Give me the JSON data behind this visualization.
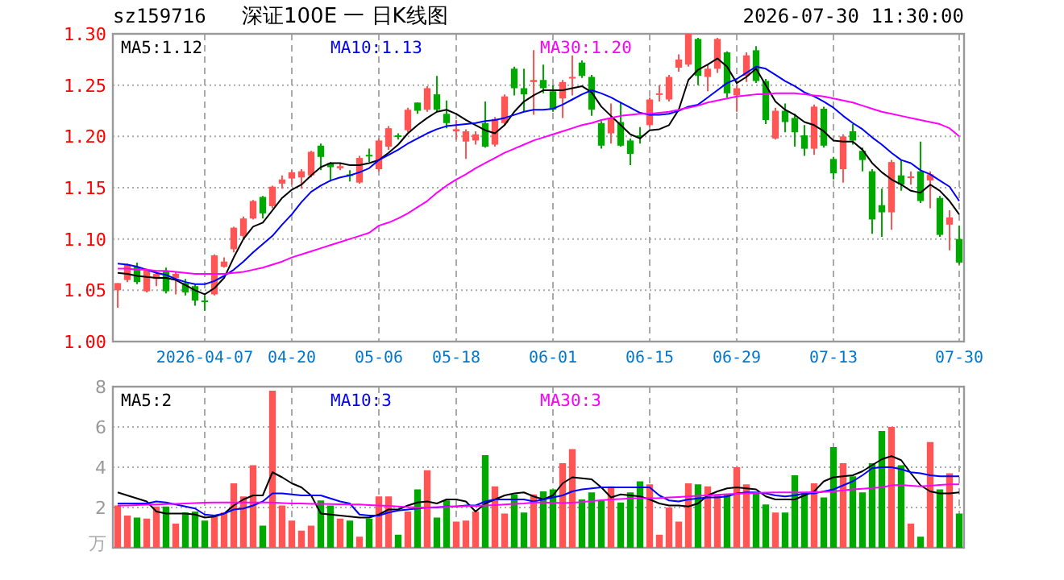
{
  "chart_data": [
    {
      "type": "candlestick",
      "title": "深证100E 一 日K线图",
      "subtitle": "sz159716",
      "annotations": [
        "2026-07-30 11:30:00"
      ],
      "categories": [
        null,
        null,
        null,
        null,
        null,
        null,
        null,
        null,
        null,
        "2026-04-07",
        null,
        null,
        null,
        null,
        null,
        null,
        null,
        null,
        "04-20",
        null,
        null,
        null,
        null,
        null,
        null,
        null,
        null,
        "05-06",
        null,
        null,
        null,
        null,
        null,
        null,
        null,
        "05-18",
        null,
        null,
        null,
        null,
        null,
        null,
        null,
        null,
        null,
        "06-01",
        null,
        null,
        null,
        null,
        null,
        null,
        null,
        null,
        null,
        "06-15",
        null,
        null,
        null,
        null,
        null,
        null,
        null,
        null,
        "06-29",
        null,
        null,
        null,
        null,
        null,
        null,
        null,
        null,
        null,
        "07-13",
        null,
        null,
        null,
        null,
        null,
        null,
        null,
        null,
        null,
        null,
        null,
        null,
        "07-30"
      ],
      "ohlc": [
        [
          1.05,
          1.057,
          1.033,
          1.057
        ],
        [
          1.06,
          1.076,
          1.058,
          1.075
        ],
        [
          1.073,
          1.077,
          1.056,
          1.058
        ],
        [
          1.049,
          1.071,
          1.048,
          1.07
        ],
        [
          1.061,
          1.069,
          1.054,
          1.066
        ],
        [
          1.069,
          1.072,
          1.047,
          1.049
        ],
        [
          1.062,
          1.068,
          1.046,
          1.066
        ],
        [
          1.057,
          1.061,
          1.045,
          1.048
        ],
        [
          1.054,
          1.056,
          1.035,
          1.04
        ],
        [
          1.04,
          1.045,
          1.03,
          1.039
        ],
        [
          1.046,
          1.085,
          1.045,
          1.084
        ],
        [
          1.073,
          1.082,
          1.072,
          1.078
        ],
        [
          1.09,
          1.112,
          1.087,
          1.111
        ],
        [
          1.103,
          1.122,
          1.1,
          1.12
        ],
        [
          1.12,
          1.138,
          1.119,
          1.137
        ],
        [
          1.141,
          1.142,
          1.12,
          1.125
        ],
        [
          1.132,
          1.152,
          1.13,
          1.151
        ],
        [
          1.154,
          1.162,
          1.149,
          1.158
        ],
        [
          1.159,
          1.167,
          1.153,
          1.165
        ],
        [
          1.16,
          1.168,
          1.149,
          1.166
        ],
        [
          1.162,
          1.186,
          1.16,
          1.185
        ],
        [
          1.191,
          1.193,
          1.167,
          1.18
        ],
        [
          1.174,
          1.175,
          1.156,
          1.17
        ],
        [
          1.169,
          1.174,
          1.167,
          1.171
        ],
        [
          1.163,
          1.167,
          1.156,
          1.162
        ],
        [
          1.155,
          1.181,
          1.154,
          1.179
        ],
        [
          1.182,
          1.188,
          1.175,
          1.181
        ],
        [
          1.168,
          1.198,
          1.166,
          1.196
        ],
        [
          1.19,
          1.21,
          1.187,
          1.208
        ],
        [
          1.201,
          1.203,
          1.197,
          1.2
        ],
        [
          1.206,
          1.228,
          1.204,
          1.226
        ],
        [
          1.233,
          1.233,
          1.222,
          1.225
        ],
        [
          1.226,
          1.249,
          1.224,
          1.247
        ],
        [
          1.241,
          1.259,
          1.224,
          1.226
        ],
        [
          1.222,
          1.235,
          1.208,
          1.213
        ],
        [
          1.205,
          1.216,
          1.197,
          1.207
        ],
        [
          1.195,
          1.207,
          1.178,
          1.205
        ],
        [
          1.196,
          1.205,
          1.192,
          1.202
        ],
        [
          1.213,
          1.234,
          1.189,
          1.19
        ],
        [
          1.192,
          1.219,
          1.19,
          1.217
        ],
        [
          1.213,
          1.241,
          1.211,
          1.239
        ],
        [
          1.266,
          1.268,
          1.24,
          1.247
        ],
        [
          1.247,
          1.266,
          1.224,
          1.241
        ],
        [
          1.253,
          1.284,
          1.221,
          1.255
        ],
        [
          1.255,
          1.27,
          1.242,
          1.247
        ],
        [
          1.244,
          1.25,
          1.224,
          1.226
        ],
        [
          1.237,
          1.255,
          1.218,
          1.253
        ],
        [
          1.257,
          1.279,
          1.24,
          1.258
        ],
        [
          1.272,
          1.274,
          1.257,
          1.259
        ],
        [
          1.258,
          1.26,
          1.22,
          1.226
        ],
        [
          1.213,
          1.215,
          1.188,
          1.191
        ],
        [
          1.203,
          1.232,
          1.193,
          1.218
        ],
        [
          1.214,
          1.233,
          1.19,
          1.191
        ],
        [
          1.196,
          1.198,
          1.172,
          1.183
        ],
        [
          1.201,
          1.209,
          1.193,
          1.2
        ],
        [
          1.211,
          1.238,
          1.209,
          1.236
        ],
        [
          1.241,
          1.25,
          1.234,
          1.242
        ],
        [
          1.236,
          1.26,
          1.234,
          1.258
        ],
        [
          1.267,
          1.28,
          1.263,
          1.275
        ],
        [
          1.27,
          1.3,
          1.268,
          1.3
        ],
        [
          1.295,
          1.296,
          1.25,
          1.259
        ],
        [
          1.258,
          1.27,
          1.244,
          1.266
        ],
        [
          1.266,
          1.296,
          1.262,
          1.295
        ],
        [
          1.282,
          1.283,
          1.238,
          1.242
        ],
        [
          1.24,
          1.25,
          1.224,
          1.247
        ],
        [
          1.259,
          1.282,
          1.253,
          1.279
        ],
        [
          1.284,
          1.288,
          1.252,
          1.254
        ],
        [
          1.254,
          1.256,
          1.212,
          1.216
        ],
        [
          1.198,
          1.228,
          1.197,
          1.225
        ],
        [
          1.225,
          1.232,
          1.204,
          1.214
        ],
        [
          1.218,
          1.222,
          1.19,
          1.204
        ],
        [
          1.201,
          1.211,
          1.181,
          1.188
        ],
        [
          1.188,
          1.231,
          1.182,
          1.229
        ],
        [
          1.227,
          1.229,
          1.189,
          1.191
        ],
        [
          1.178,
          1.18,
          1.158,
          1.164
        ],
        [
          1.168,
          1.202,
          1.155,
          1.2
        ],
        [
          1.205,
          1.212,
          1.192,
          1.196
        ],
        [
          1.186,
          1.189,
          1.166,
          1.177
        ],
        [
          1.166,
          1.168,
          1.105,
          1.119
        ],
        [
          1.133,
          1.149,
          1.102,
          1.126
        ],
        [
          1.126,
          1.177,
          1.109,
          1.175
        ],
        [
          1.162,
          1.177,
          1.147,
          1.153
        ],
        [
          1.16,
          1.166,
          1.153,
          1.161
        ],
        [
          1.166,
          1.195,
          1.135,
          1.137
        ],
        [
          1.157,
          1.166,
          1.13,
          1.163
        ],
        [
          1.14,
          1.142,
          1.102,
          1.104
        ],
        [
          1.114,
          1.128,
          1.089,
          1.121
        ],
        [
          1.1,
          1.113,
          1.075,
          1.077
        ]
      ],
      "colors": [
        "#ff5555",
        "#ff5555",
        "#00a800",
        "#ff5555",
        "#ff5555",
        "#00a800",
        "#ff5555",
        "#00a800",
        "#00a800",
        "#00a800",
        "#ff5555",
        "#ff5555",
        "#ff5555",
        "#ff5555",
        "#ff5555",
        "#00a800",
        "#ff5555",
        "#ff5555",
        "#ff5555",
        "#ff5555",
        "#ff5555",
        "#00a800",
        "#00a800",
        "#ff5555",
        "#00a800",
        "#ff5555",
        "#00a800",
        "#ff5555",
        "#ff5555",
        "#00a800",
        "#ff5555",
        "#00a800",
        "#ff5555",
        "#00a800",
        "#00a800",
        "#ff5555",
        "#ff5555",
        "#ff5555",
        "#00a800",
        "#ff5555",
        "#ff5555",
        "#00a800",
        "#00a800",
        "#ff5555",
        "#00a800",
        "#00a800",
        "#ff5555",
        "#ff5555",
        "#00a800",
        "#00a800",
        "#00a800",
        "#ff5555",
        "#00a800",
        "#00a800",
        "#00a800",
        "#ff5555",
        "#ff5555",
        "#ff5555",
        "#ff5555",
        "#ff5555",
        "#00a800",
        "#ff5555",
        "#ff5555",
        "#00a800",
        "#ff5555",
        "#ff5555",
        "#00a800",
        "#00a800",
        "#ff5555",
        "#00a800",
        "#00a800",
        "#00a800",
        "#ff5555",
        "#00a800",
        "#00a800",
        "#ff5555",
        "#00a800",
        "#00a800",
        "#00a800",
        "#00a800",
        "#ff5555",
        "#00a800",
        "#ff5555",
        "#00a800",
        "#ff5555",
        "#00a800",
        "#ff5555",
        "#00a800"
      ],
      "series": [
        {
          "name": "MA5:1.12",
          "type": "line",
          "color": "#000000",
          "values": [
            1.067,
            1.066,
            1.064,
            1.063,
            1.062,
            1.062,
            1.06,
            1.055,
            1.05,
            1.046,
            1.052,
            1.062,
            1.082,
            1.1,
            1.112,
            1.116,
            1.128,
            1.14,
            1.148,
            1.153,
            1.162,
            1.17,
            1.174,
            1.174,
            1.172,
            1.172,
            1.174,
            1.177,
            1.184,
            1.192,
            1.203,
            1.211,
            1.218,
            1.224,
            1.226,
            1.222,
            1.216,
            1.211,
            1.206,
            1.203,
            1.211,
            1.224,
            1.234,
            1.24,
            1.245,
            1.245,
            1.245,
            1.247,
            1.249,
            1.243,
            1.229,
            1.22,
            1.211,
            1.202,
            1.198,
            1.206,
            1.207,
            1.211,
            1.226,
            1.255,
            1.265,
            1.27,
            1.276,
            1.268,
            1.252,
            1.258,
            1.266,
            1.25,
            1.234,
            1.226,
            1.221,
            1.214,
            1.211,
            1.205,
            1.196,
            1.195,
            1.195,
            1.187,
            1.174,
            1.165,
            1.158,
            1.153,
            1.147,
            1.145,
            1.153,
            1.147,
            1.137,
            1.124
          ]
        },
        {
          "name": "MA10:1.13",
          "type": "line",
          "color": "#0000ff",
          "values": [
            1.076,
            1.075,
            1.073,
            1.07,
            1.067,
            1.065,
            1.061,
            1.058,
            1.056,
            1.056,
            1.059,
            1.064,
            1.07,
            1.078,
            1.087,
            1.095,
            1.103,
            1.114,
            1.124,
            1.136,
            1.146,
            1.152,
            1.157,
            1.16,
            1.162,
            1.165,
            1.169,
            1.177,
            1.182,
            1.187,
            1.193,
            1.198,
            1.203,
            1.207,
            1.21,
            1.211,
            1.212,
            1.213,
            1.215,
            1.216,
            1.218,
            1.221,
            1.224,
            1.226,
            1.226,
            1.227,
            1.231,
            1.236,
            1.241,
            1.245,
            1.242,
            1.238,
            1.233,
            1.228,
            1.223,
            1.221,
            1.221,
            1.222,
            1.225,
            1.229,
            1.231,
            1.238,
            1.245,
            1.252,
            1.256,
            1.262,
            1.268,
            1.266,
            1.26,
            1.254,
            1.249,
            1.243,
            1.239,
            1.234,
            1.228,
            1.22,
            1.213,
            1.207,
            1.199,
            1.192,
            1.184,
            1.177,
            1.174,
            1.167,
            1.163,
            1.157,
            1.151,
            1.137
          ]
        },
        {
          "name": "MA30:1.20",
          "type": "line",
          "color": "#ff00ff",
          "values": [
            1.071,
            1.071,
            1.07,
            1.07,
            1.069,
            1.069,
            1.068,
            1.067,
            1.066,
            1.066,
            1.066,
            1.066,
            1.067,
            1.068,
            1.07,
            1.072,
            1.075,
            1.078,
            1.082,
            1.085,
            1.088,
            1.091,
            1.094,
            1.097,
            1.1,
            1.103,
            1.106,
            1.113,
            1.116,
            1.12,
            1.125,
            1.131,
            1.137,
            1.145,
            1.152,
            1.158,
            1.163,
            1.169,
            1.174,
            1.179,
            1.184,
            1.188,
            1.192,
            1.196,
            1.199,
            1.202,
            1.205,
            1.208,
            1.211,
            1.213,
            1.216,
            1.218,
            1.22,
            1.221,
            1.222,
            1.222,
            1.223,
            1.224,
            1.226,
            1.228,
            1.23,
            1.233,
            1.235,
            1.237,
            1.239,
            1.24,
            1.241,
            1.241,
            1.242,
            1.242,
            1.242,
            1.241,
            1.24,
            1.239,
            1.237,
            1.235,
            1.233,
            1.23,
            1.227,
            1.224,
            1.222,
            1.22,
            1.218,
            1.216,
            1.214,
            1.212,
            1.208,
            1.2
          ]
        }
      ],
      "ylim": [
        1.0,
        1.3
      ],
      "yticks": [
        {
          "value": 1.0,
          "label": "1.00"
        },
        {
          "value": 1.05,
          "label": "1.05"
        },
        {
          "value": 1.1,
          "label": "1.10"
        },
        {
          "value": 1.15,
          "label": "1.15"
        },
        {
          "value": 1.2,
          "label": "1.20"
        },
        {
          "value": 1.25,
          "label": "1.25"
        },
        {
          "value": 1.3,
          "label": "1.30"
        }
      ],
      "grid": true,
      "legend": "top left"
    },
    {
      "type": "bar",
      "ylabel": "万",
      "categories": [
        null,
        null,
        null,
        null,
        null,
        null,
        null,
        null,
        null,
        null,
        null,
        null,
        null,
        null,
        null,
        null,
        null,
        null,
        null,
        null,
        null,
        null,
        null,
        null,
        null,
        null,
        null,
        null,
        null,
        null,
        null,
        null,
        null,
        null,
        null,
        null,
        null,
        null,
        null,
        null,
        null,
        null,
        null,
        null,
        null,
        null,
        null,
        null,
        null,
        null,
        null,
        null,
        null,
        null,
        null,
        null,
        null,
        null,
        null,
        null,
        null,
        null,
        null,
        null,
        null,
        null,
        null,
        null,
        null,
        null,
        null,
        null,
        null,
        null,
        null,
        null,
        null,
        null,
        null,
        null,
        null,
        null,
        null,
        null,
        null,
        null,
        null,
        null
      ],
      "values": [
        2.1,
        1.6,
        1.5,
        1.45,
        2.05,
        2.05,
        1.2,
        1.75,
        1.8,
        1.35,
        1.55,
        1.75,
        3.2,
        2.55,
        4.1,
        1.1,
        7.8,
        2.1,
        1.35,
        0.85,
        1.1,
        2.35,
        2.1,
        1.45,
        1.35,
        0.55,
        1.45,
        2.55,
        2.55,
        0.65,
        1.8,
        2.9,
        3.85,
        1.5,
        2.35,
        1.3,
        1.35,
        1.8,
        4.6,
        3.05,
        1.7,
        2.65,
        1.75,
        2.65,
        2.8,
        2.9,
        4.2,
        4.9,
        2.4,
        2.75,
        2.35,
        3.05,
        2.25,
        2.75,
        3.3,
        3.15,
        0.65,
        2.0,
        1.3,
        3.2,
        3.15,
        3.05,
        2.65,
        2.65,
        4.0,
        3.15,
        2.75,
        2.15,
        1.75,
        1.75,
        3.6,
        2.7,
        3.2,
        2.5,
        5.0,
        4.2,
        3.55,
        2.75,
        4.2,
        5.8,
        6.0,
        4.1,
        1.2,
        0.55,
        5.25,
        2.9,
        3.7,
        1.7
      ],
      "colors": [
        "#ff5555",
        "#ff5555",
        "#00a800",
        "#ff5555",
        "#ff5555",
        "#00a800",
        "#ff5555",
        "#00a800",
        "#00a800",
        "#00a800",
        "#ff5555",
        "#ff5555",
        "#ff5555",
        "#ff5555",
        "#ff5555",
        "#00a800",
        "#ff5555",
        "#ff5555",
        "#ff5555",
        "#ff5555",
        "#ff5555",
        "#00a800",
        "#00a800",
        "#ff5555",
        "#00a800",
        "#ff5555",
        "#00a800",
        "#ff5555",
        "#ff5555",
        "#00a800",
        "#ff5555",
        "#00a800",
        "#ff5555",
        "#00a800",
        "#00a800",
        "#ff5555",
        "#ff5555",
        "#ff5555",
        "#00a800",
        "#ff5555",
        "#ff5555",
        "#00a800",
        "#00a800",
        "#ff5555",
        "#00a800",
        "#00a800",
        "#ff5555",
        "#ff5555",
        "#00a800",
        "#00a800",
        "#00a800",
        "#ff5555",
        "#00a800",
        "#00a800",
        "#00a800",
        "#ff5555",
        "#ff5555",
        "#ff5555",
        "#ff5555",
        "#ff5555",
        "#00a800",
        "#ff5555",
        "#ff5555",
        "#00a800",
        "#ff5555",
        "#ff5555",
        "#00a800",
        "#00a800",
        "#ff5555",
        "#00a800",
        "#00a800",
        "#00a800",
        "#ff5555",
        "#00a800",
        "#00a800",
        "#ff5555",
        "#00a800",
        "#00a800",
        "#00a800",
        "#00a800",
        "#ff5555",
        "#00a800",
        "#ff5555",
        "#00a800",
        "#ff5555",
        "#00a800",
        "#ff5555",
        "#00a800"
      ],
      "series": [
        {
          "name": "MA5:2",
          "type": "line",
          "color": "#000000",
          "values": [
            2.75,
            2.6,
            2.45,
            2.3,
            1.8,
            1.7,
            1.7,
            1.7,
            1.65,
            1.5,
            1.55,
            1.7,
            2.1,
            2.4,
            2.6,
            2.6,
            3.75,
            3.5,
            3.2,
            3.0,
            2.6,
            1.7,
            1.65,
            1.6,
            1.55,
            1.5,
            1.5,
            1.65,
            1.9,
            1.9,
            2.1,
            2.25,
            2.3,
            2.2,
            2.4,
            2.4,
            2.3,
            1.8,
            2.2,
            2.4,
            2.6,
            2.7,
            2.75,
            2.55,
            2.4,
            2.6,
            3.2,
            3.5,
            3.45,
            3.4,
            3.0,
            2.5,
            2.65,
            2.6,
            2.55,
            2.4,
            2.2,
            2.1,
            2.1,
            2.05,
            2.2,
            2.6,
            2.8,
            2.95,
            3.0,
            2.95,
            2.9,
            2.55,
            2.4,
            2.4,
            2.4,
            2.6,
            2.8,
            3.3,
            3.5,
            3.55,
            3.6,
            3.8,
            4.1,
            4.4,
            4.55,
            4.35,
            3.7,
            3.1,
            2.8,
            2.7,
            2.7,
            2.75
          ]
        },
        {
          "name": "MA10:3",
          "type": "line",
          "color": "#0000ff",
          "values": [
            2.2,
            2.2,
            2.2,
            2.2,
            2.3,
            2.25,
            2.15,
            2.05,
            1.95,
            1.65,
            1.6,
            1.7,
            1.9,
            1.95,
            2.1,
            2.3,
            2.7,
            2.7,
            2.65,
            2.6,
            2.6,
            2.6,
            2.45,
            2.3,
            2.2,
            1.65,
            1.6,
            1.6,
            1.75,
            1.85,
            1.9,
            1.95,
            2.0,
            2.0,
            2.05,
            2.05,
            2.1,
            2.1,
            2.3,
            2.4,
            2.4,
            2.4,
            2.4,
            2.3,
            2.4,
            2.5,
            2.6,
            2.8,
            2.9,
            2.95,
            3.0,
            3.0,
            3.0,
            3.0,
            3.0,
            3.0,
            2.6,
            2.35,
            2.3,
            2.4,
            2.45,
            2.5,
            2.5,
            2.55,
            2.7,
            2.75,
            2.75,
            2.7,
            2.6,
            2.55,
            2.6,
            2.7,
            2.7,
            2.8,
            2.9,
            3.1,
            3.3,
            3.6,
            3.95,
            4.0,
            4.0,
            3.9,
            3.75,
            3.7,
            3.6,
            3.55,
            3.55,
            3.55
          ]
        },
        {
          "name": "MA30:3",
          "type": "line",
          "color": "#ff00ff",
          "values": [
            2.1,
            2.1,
            2.12,
            2.14,
            2.15,
            2.17,
            2.18,
            2.2,
            2.22,
            2.24,
            2.25,
            2.25,
            2.25,
            2.25,
            2.25,
            2.25,
            2.25,
            2.22,
            2.2,
            2.2,
            2.18,
            2.18,
            2.17,
            2.16,
            2.15,
            2.15,
            2.12,
            2.1,
            2.08,
            2.05,
            2.02,
            2.0,
            2.0,
            2.02,
            2.03,
            2.05,
            2.07,
            2.08,
            2.1,
            2.12,
            2.15,
            2.18,
            2.2,
            2.25,
            2.25,
            2.24,
            2.22,
            2.24,
            2.27,
            2.32,
            2.36,
            2.4,
            2.42,
            2.45,
            2.46,
            2.46,
            2.47,
            2.5,
            2.52,
            2.55,
            2.58,
            2.6,
            2.63,
            2.66,
            2.68,
            2.7,
            2.72,
            2.74,
            2.75,
            2.75,
            2.75,
            2.75,
            2.76,
            2.78,
            2.8,
            2.85,
            2.9,
            2.93,
            2.97,
            3.0,
            3.1,
            3.12,
            3.08,
            3.05,
            3.08,
            3.12,
            3.15,
            3.15
          ]
        }
      ],
      "ylim": [
        0,
        8
      ],
      "yticks": [
        2,
        4,
        6,
        8
      ],
      "grid": true,
      "legend": "top left",
      "tick_labels": "y"
    }
  ]
}
